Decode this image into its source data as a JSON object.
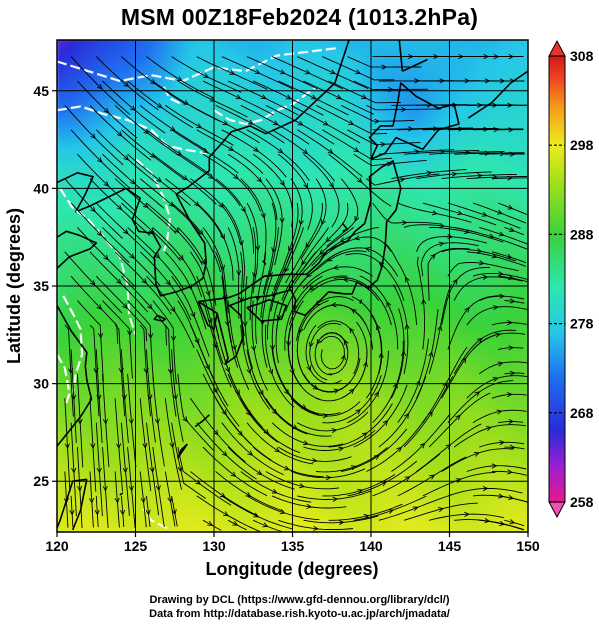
{
  "title": "MSM 00Z18Feb2024 (1013.2hPa)",
  "axes": {
    "xlabel": "Longitude (degrees)",
    "ylabel": "Latitude  (degrees)",
    "xticks": [
      {
        "value": 120,
        "label": "120"
      },
      {
        "value": 125,
        "label": "125"
      },
      {
        "value": 130,
        "label": "130"
      },
      {
        "value": 135,
        "label": "135"
      },
      {
        "value": 140,
        "label": "140"
      },
      {
        "value": 145,
        "label": "145"
      },
      {
        "value": 150,
        "label": "150"
      }
    ],
    "yticks": [
      {
        "value": 25,
        "label": "25"
      },
      {
        "value": 30,
        "label": "30"
      },
      {
        "value": 35,
        "label": "35"
      },
      {
        "value": 40,
        "label": "40"
      },
      {
        "value": 45,
        "label": "45"
      }
    ],
    "lon_range": [
      120,
      150
    ],
    "lat_range": [
      22.4,
      47.6
    ],
    "grid": true
  },
  "colorbar": {
    "min": 258,
    "max": 308,
    "ticks": [
      {
        "value": 308,
        "label": "308"
      },
      {
        "value": 298,
        "label": "298"
      },
      {
        "value": 288,
        "label": "288"
      },
      {
        "value": 278,
        "label": "278"
      },
      {
        "value": 268,
        "label": "268"
      },
      {
        "value": 258,
        "label": "258"
      }
    ],
    "colors": {
      "258": "#e6198c",
      "262": "#9b1fd0",
      "266": "#2a2ad8",
      "272": "#1f6ff0",
      "277": "#25c7e8",
      "282": "#2ee6b0",
      "288": "#3ad23a",
      "294": "#a6e01a",
      "298": "#ecec1c",
      "302": "#f5a21a",
      "306": "#ee4422",
      "308": "#d11a14"
    }
  },
  "credit": {
    "line1": "Drawing by DCL (https://www.gfd-dennou.org/library/dcl/)",
    "line2": "Data from http://database.rish.kyoto-u.ac.jp/arch/jmadata/"
  },
  "map": {
    "land_color": "#000000",
    "streamline_color": "#000000",
    "contour_color": "#ffffff"
  }
}
